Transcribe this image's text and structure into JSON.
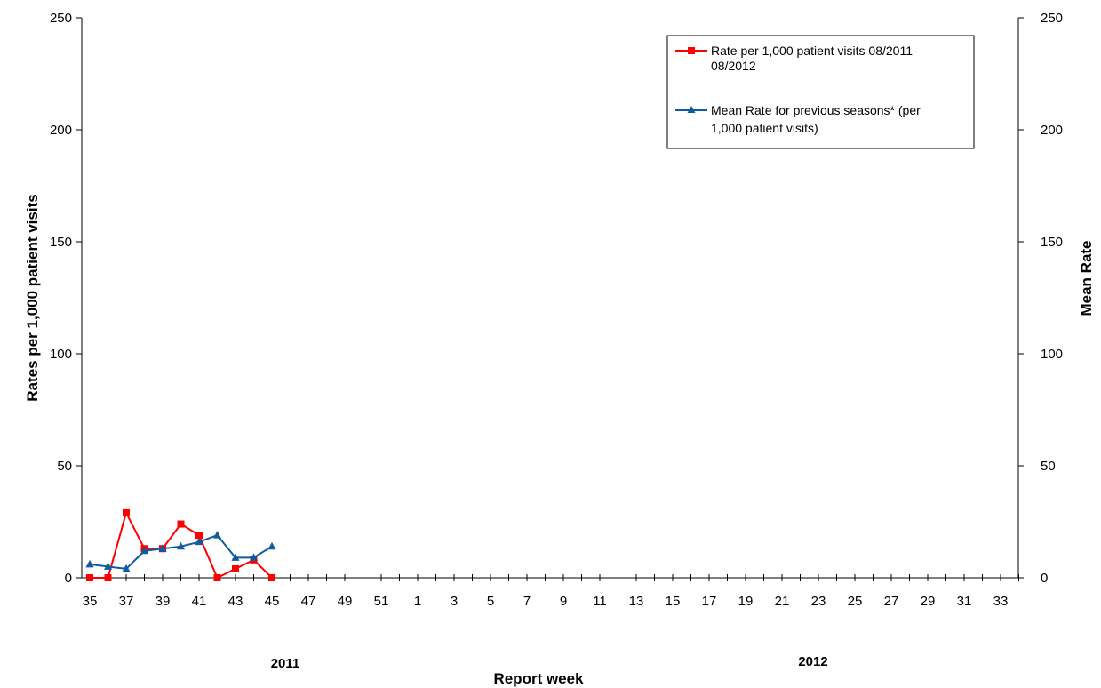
{
  "chart_data": {
    "type": "line",
    "x_ticks": [
      "35",
      "36",
      "37",
      "38",
      "39",
      "40",
      "41",
      "42",
      "43",
      "44",
      "45",
      "46",
      "47",
      "48",
      "49",
      "50",
      "51",
      "52",
      "1",
      "2",
      "3",
      "4",
      "5",
      "6",
      "7",
      "8",
      "9",
      "10",
      "11",
      "12",
      "13",
      "14",
      "15",
      "16",
      "17",
      "18",
      "19",
      "20",
      "21",
      "22",
      "23",
      "24",
      "25",
      "26",
      "27",
      "28",
      "29",
      "30",
      "31",
      "32",
      "33",
      "34"
    ],
    "x_tick_labels_shown": [
      "35",
      "37",
      "39",
      "41",
      "43",
      "45",
      "47",
      "49",
      "51",
      "1",
      "3",
      "5",
      "7",
      "9",
      "11",
      "13",
      "15",
      "17",
      "19",
      "21",
      "23",
      "25",
      "27",
      "29",
      "31",
      "33"
    ],
    "years": [
      "2011",
      "2012"
    ],
    "xlabel": "Report week",
    "ylabel_left": "Rates per 1,000 patient visits",
    "ylabel_right": "Mean Rate",
    "ylim": [
      0,
      250
    ],
    "y_ticks": [
      0,
      50,
      100,
      150,
      200,
      250
    ],
    "legend_position": "top-right",
    "series": [
      {
        "name": "Rate per 1,000 patient visits 08/2011-08/2012",
        "legend_lines": [
          "Rate per 1,000 patient visits 08/2011-",
          "08/2012"
        ],
        "color": "#ff0000",
        "marker": "square",
        "x": [
          "35",
          "36",
          "37",
          "38",
          "39",
          "40",
          "41",
          "42",
          "43",
          "44",
          "45"
        ],
        "values": [
          0,
          0,
          29,
          13,
          13,
          24,
          19,
          0,
          4,
          8,
          0
        ]
      },
      {
        "name": "Mean Rate for previous seasons* (per 1,000 patient visits)",
        "legend_lines": [
          "Mean Rate  for previous seasons* (per",
          "1,000 patient visits)"
        ],
        "color": "#0f5b9e",
        "marker": "triangle",
        "x": [
          "35",
          "36",
          "37",
          "38",
          "39",
          "40",
          "41",
          "42",
          "43",
          "44",
          "45"
        ],
        "values": [
          6,
          5,
          4,
          12,
          13,
          14,
          16,
          19,
          9,
          9,
          14
        ]
      }
    ]
  }
}
